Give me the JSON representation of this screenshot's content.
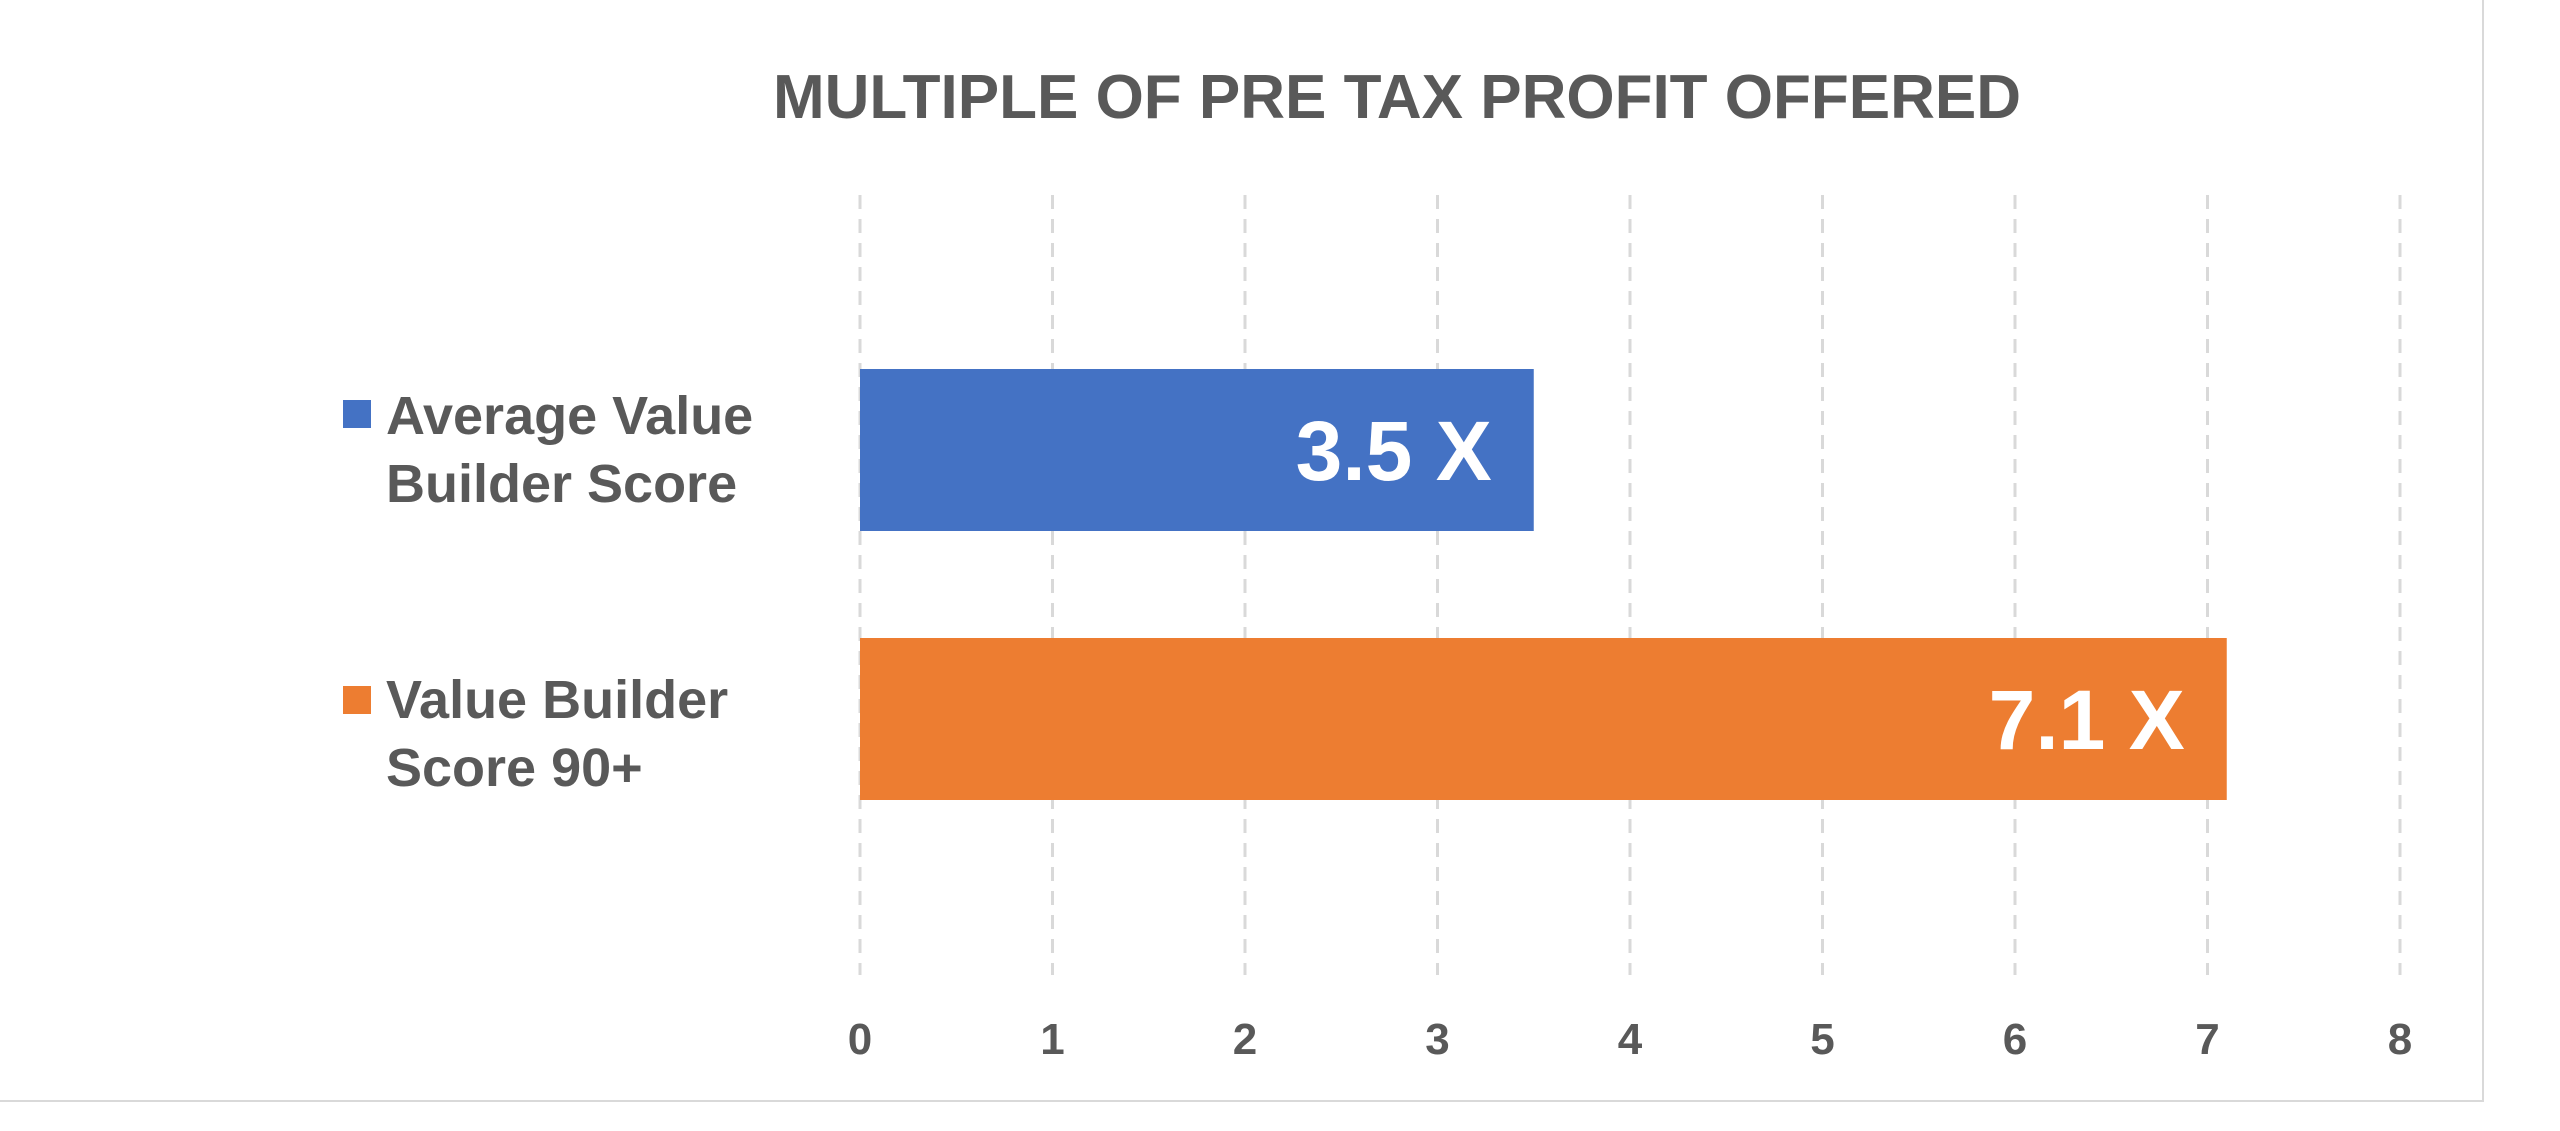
{
  "chart_data": {
    "type": "bar",
    "orientation": "horizontal",
    "title": "MULTIPLE OF PRE TAX PROFIT OFFERED",
    "categories": [
      "Average Value Builder Score",
      "Value Builder Score 90+"
    ],
    "category_lines": [
      [
        "Average Value",
        "Builder Score"
      ],
      [
        "Value Builder",
        "Score 90+"
      ]
    ],
    "values": [
      3.5,
      7.1
    ],
    "data_labels": [
      "3.5 X",
      "7.1 X"
    ],
    "colors": [
      "#4472C4",
      "#ED7D31"
    ],
    "xlim": [
      0,
      8
    ],
    "x_ticks": [
      "0",
      "1",
      "2",
      "3",
      "4",
      "5",
      "6",
      "7",
      "8"
    ],
    "grid": true,
    "legend": "left",
    "xlabel": "",
    "ylabel": ""
  }
}
